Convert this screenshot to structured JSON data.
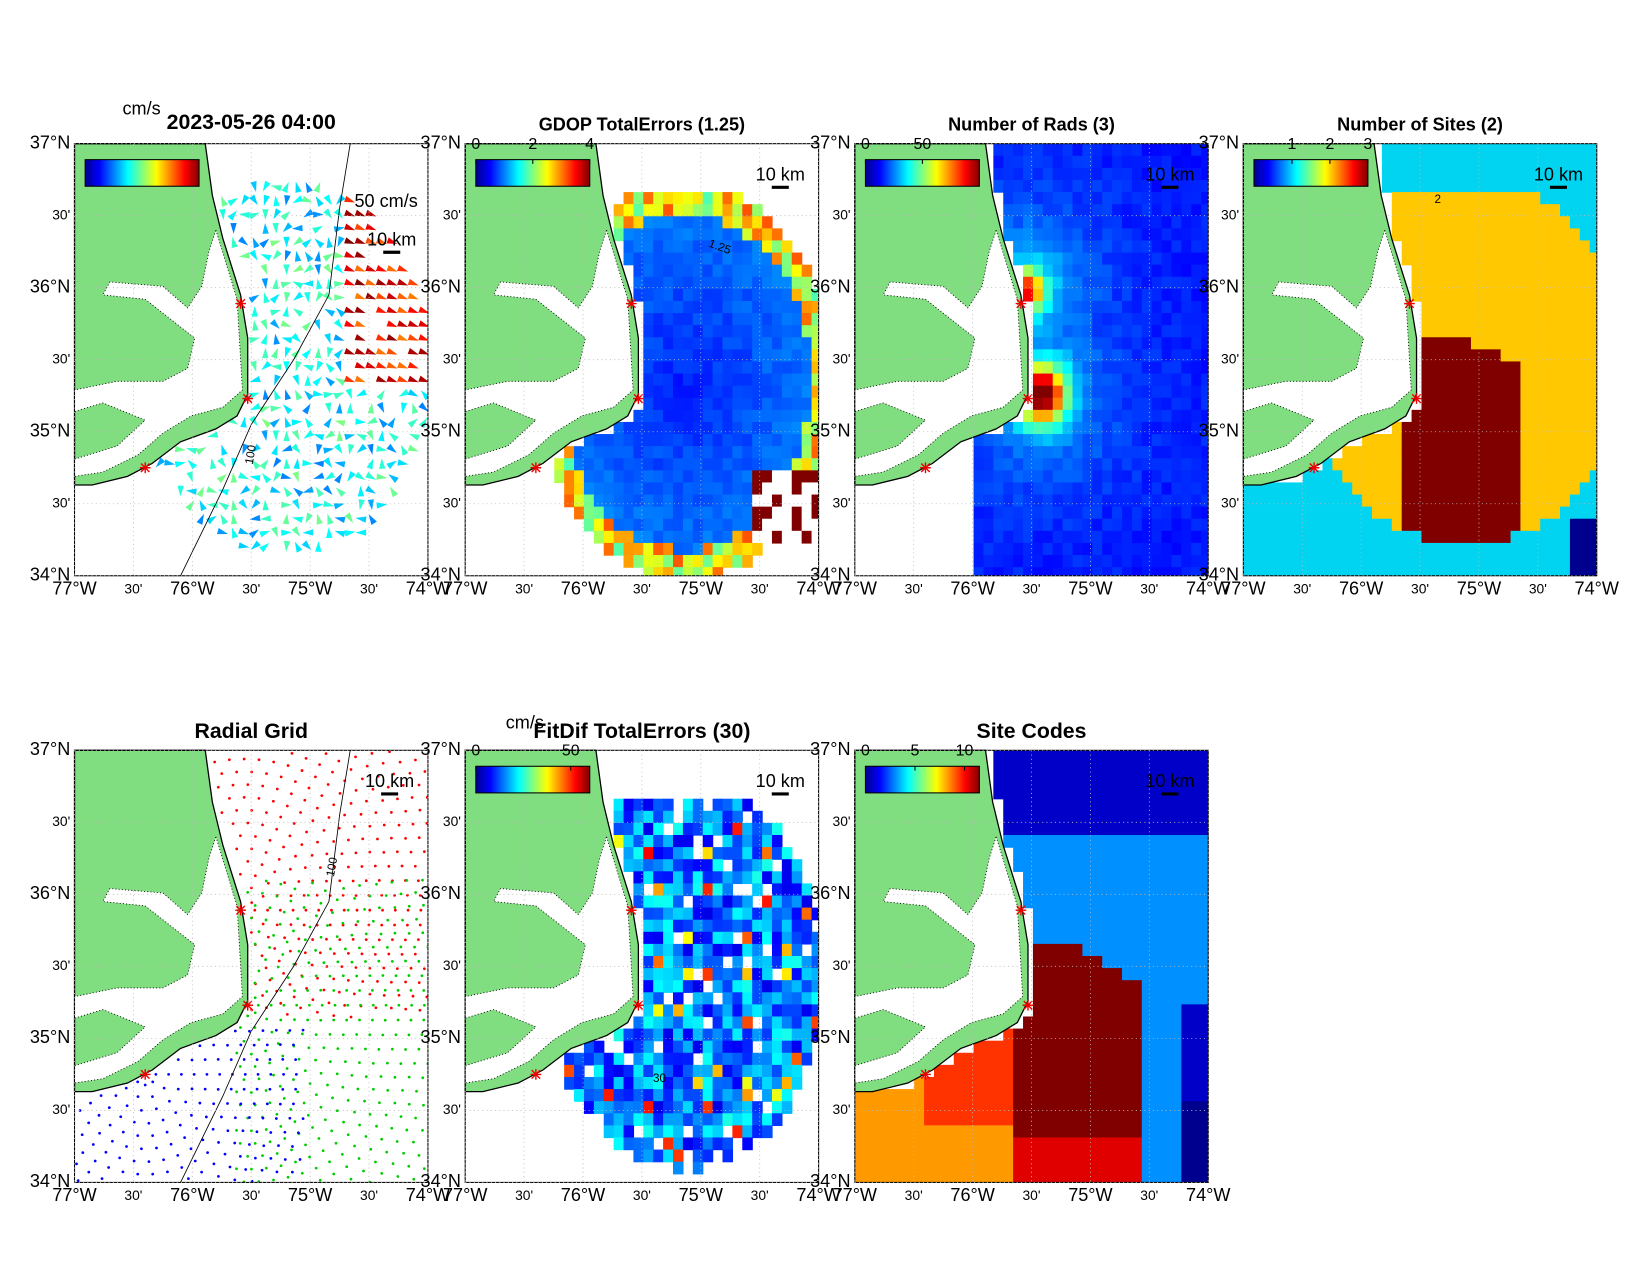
{
  "lat_lim": [
    34,
    37
  ],
  "lon_lim": [
    -77,
    -74
  ],
  "lat_ticks": [
    {
      "value": 37,
      "label": "37°N"
    },
    {
      "value": 36.5,
      "label": "30'"
    },
    {
      "value": 36,
      "label": "36°N"
    },
    {
      "value": 35.5,
      "label": "30'"
    },
    {
      "value": 35,
      "label": "35°N"
    },
    {
      "value": 34.5,
      "label": "30'"
    },
    {
      "value": 34,
      "label": "34°N"
    }
  ],
  "lon_ticks": [
    {
      "value": -77,
      "label": "77°W"
    },
    {
      "value": -76.5,
      "label": "30'"
    },
    {
      "value": -76,
      "label": "76°W"
    },
    {
      "value": -75.5,
      "label": "30'"
    },
    {
      "value": -75,
      "label": "75°W"
    },
    {
      "value": -74.5,
      "label": "30'"
    },
    {
      "value": -74,
      "label": "74°W"
    }
  ],
  "scale_label": "10 km",
  "panels": [
    {
      "title": "2023-05-26 04:00",
      "colorbar_label": "cm/s",
      "vector_scale_label": "50 cm/s",
      "contour_labels": [
        "100"
      ]
    },
    {
      "title": "GDOP TotalErrors (1.25)",
      "colorbar_lim": [
        0,
        4
      ],
      "colorbar_ticks": [
        0,
        2,
        4
      ],
      "contour_labels": [
        "1.25"
      ]
    },
    {
      "title": "Number of Rads (3)",
      "colorbar_lim": [
        0,
        100
      ],
      "colorbar_ticks": [
        0,
        50
      ]
    },
    {
      "title": "Number of Sites (2)",
      "colorbar_lim": [
        0,
        3
      ],
      "colorbar_ticks": [
        1,
        2,
        3
      ],
      "contour_labels": [
        "2"
      ]
    },
    {
      "title": "Radial Grid",
      "contour_labels": [
        "100"
      ]
    },
    {
      "title": "FitDif TotalErrors (30)",
      "colorbar_label": "cm/s",
      "colorbar_lim": [
        0,
        60
      ],
      "colorbar_ticks": [
        0,
        50
      ],
      "contour_labels": [
        "30"
      ]
    },
    {
      "title": "Site Codes",
      "colorbar_lim": [
        0,
        11.5
      ],
      "colorbar_ticks": [
        0,
        5,
        10
      ]
    }
  ]
}
